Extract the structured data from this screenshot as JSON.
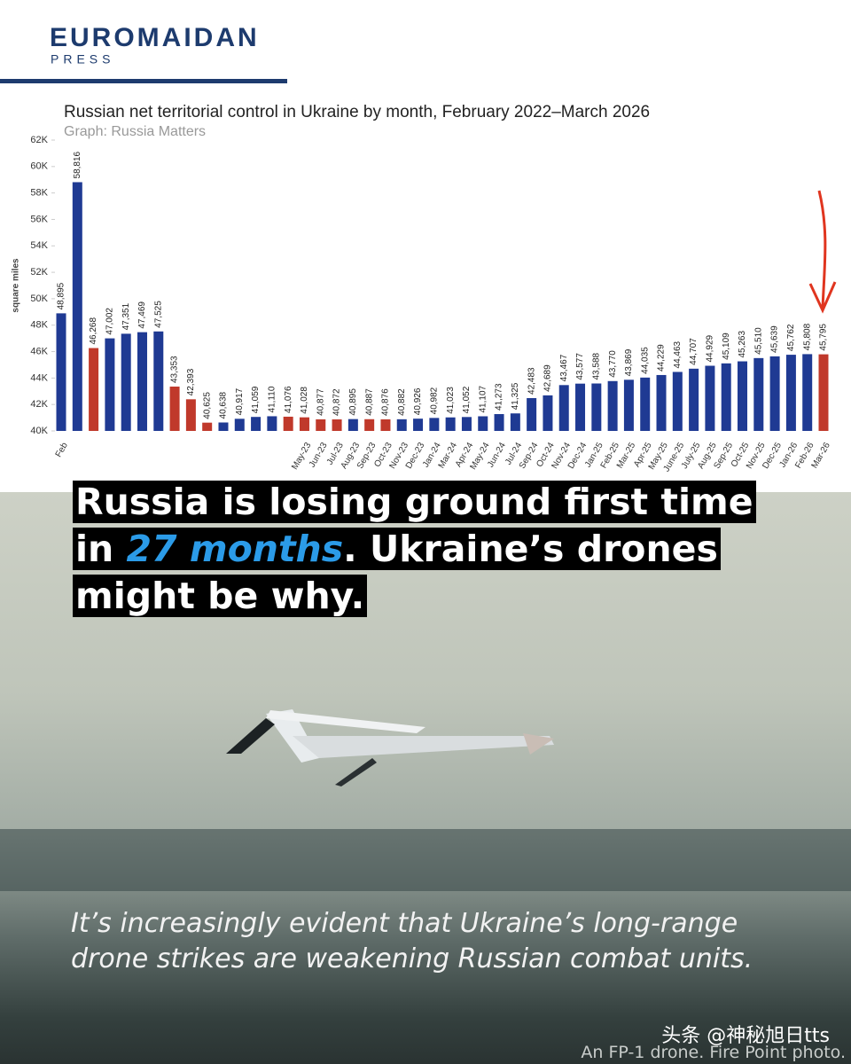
{
  "header": {
    "logo": "EUROMAIDAN",
    "logo_sub": "PRESS"
  },
  "chart_data": {
    "type": "bar",
    "title": "Russian net territorial control in Ukraine by month, February 2022–March 2026",
    "subtitle": "Graph: Russia Matters",
    "y_label": "square miles",
    "categories": [
      "Feb",
      null,
      null,
      null,
      null,
      null,
      null,
      null,
      null,
      null,
      null,
      null,
      null,
      null,
      null,
      "May-23",
      "Jun-23",
      "Jul-23",
      "Aug-23",
      "Sep-23",
      "Oct-23",
      "Nov-23",
      "Dec-23",
      "Jan-24",
      "Mar-24",
      "Apr-24",
      "May-24",
      "Jun-24",
      "Jul-24",
      "Sep-24",
      "Oct-24",
      "Nov-24",
      "Dec-24",
      "Jan-25",
      "Feb-25",
      "Mar-25",
      "Apr-25",
      "May-25",
      "June-25",
      "July-25",
      "Aug-25",
      "Sep-25",
      "Oct-25",
      "Nov-25",
      "Dec-25",
      "Jan-26",
      "Feb-26",
      "Mar-26"
    ],
    "values": [
      48895,
      58816,
      46268,
      47002,
      47351,
      47469,
      47525,
      43353,
      42393,
      40625,
      40638,
      40917,
      41059,
      41110,
      41076,
      41028,
      40877,
      40872,
      40895,
      40887,
      40876,
      40882,
      40926,
      40982,
      41023,
      41052,
      41107,
      41273,
      41325,
      42483,
      42689,
      43467,
      43577,
      43588,
      43770,
      43869,
      44035,
      44229,
      44463,
      44707,
      44929,
      45109,
      45263,
      45510,
      45639,
      45762,
      45808,
      45795
    ],
    "value_labels": [
      "48,895",
      "58,816",
      "46,268",
      "47,002",
      "47,351",
      "47,469",
      "47,525",
      "43,353",
      "42,393",
      "40,625",
      "40,638",
      "40,917",
      "41,059",
      "41,110",
      "41,076",
      "41,028",
      "40,877",
      "40,872",
      "40,895",
      "40,887",
      "40,876",
      "40,882",
      "40,926",
      "40,982",
      "41,023",
      "41,052",
      "41,107",
      "41,273",
      "41,325",
      "42,483",
      "42,689",
      "43,467",
      "43,577",
      "43,588",
      "43,770",
      "43,869",
      "44,035",
      "44,229",
      "44,463",
      "44,707",
      "44,929",
      "45,109",
      "45,263",
      "45,510",
      "45,639",
      "45,762",
      "45,808",
      "45,795"
    ],
    "colors": [
      "#1f3a93",
      "#1f3a93",
      "#c0392b",
      "#1f3a93",
      "#1f3a93",
      "#1f3a93",
      "#1f3a93",
      "#c0392b",
      "#c0392b",
      "#c0392b",
      "#1f3a93",
      "#1f3a93",
      "#1f3a93",
      "#1f3a93",
      "#c0392b",
      "#c0392b",
      "#c0392b",
      "#c0392b",
      "#1f3a93",
      "#c0392b",
      "#c0392b",
      "#1f3a93",
      "#1f3a93",
      "#1f3a93",
      "#1f3a93",
      "#1f3a93",
      "#1f3a93",
      "#1f3a93",
      "#1f3a93",
      "#1f3a93",
      "#1f3a93",
      "#1f3a93",
      "#1f3a93",
      "#1f3a93",
      "#1f3a93",
      "#1f3a93",
      "#1f3a93",
      "#1f3a93",
      "#1f3a93",
      "#1f3a93",
      "#1f3a93",
      "#1f3a93",
      "#1f3a93",
      "#1f3a93",
      "#1f3a93",
      "#1f3a93",
      "#1f3a93",
      "#c0392b"
    ],
    "ylim": [
      40000,
      62000
    ],
    "yticks": [
      {
        "value": 40000,
        "label": "40K"
      },
      {
        "value": 42000,
        "label": "42K"
      },
      {
        "value": 44000,
        "label": "44K"
      },
      {
        "value": 46000,
        "label": "46K"
      },
      {
        "value": 48000,
        "label": "48K"
      },
      {
        "value": 50000,
        "label": "50K"
      },
      {
        "value": 52000,
        "label": "52K"
      },
      {
        "value": 54000,
        "label": "54K"
      },
      {
        "value": 56000,
        "label": "56K"
      },
      {
        "value": 58000,
        "label": "58K"
      },
      {
        "value": 60000,
        "label": "60K"
      },
      {
        "value": 62000,
        "label": "62K"
      }
    ],
    "grid": false
  },
  "headline": {
    "before": "Russia is losing ground first time in ",
    "highlight": "27 months",
    "after": ". Ukraine’s drones might be why."
  },
  "caption": "It’s increasingly evident that Ukraine’s long-range drone strikes are weakening Russian combat units.",
  "watermark": "头条 @神秘旭日tts",
  "photo_credit": "An FP-1 drone. Fire Point photo."
}
